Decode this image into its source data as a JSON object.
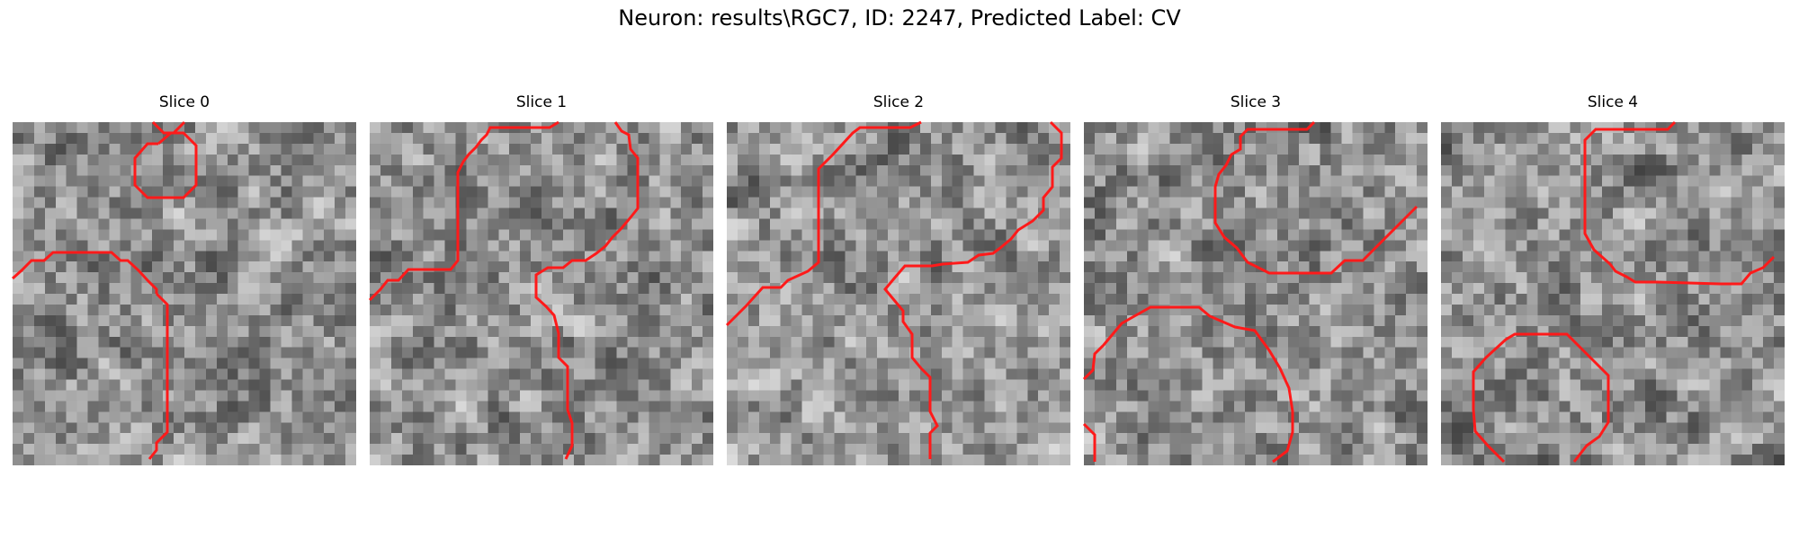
{
  "figure": {
    "title": "Neuron: results\\RGC7, ID: 2247, Predicted Label: CV",
    "contour_color": "#ff0000",
    "colormap": "gray"
  },
  "slices": [
    {
      "label": "Slice 0"
    },
    {
      "label": "Slice 1"
    },
    {
      "label": "Slice 2"
    },
    {
      "label": "Slice 3"
    },
    {
      "label": "Slice 4"
    }
  ]
}
